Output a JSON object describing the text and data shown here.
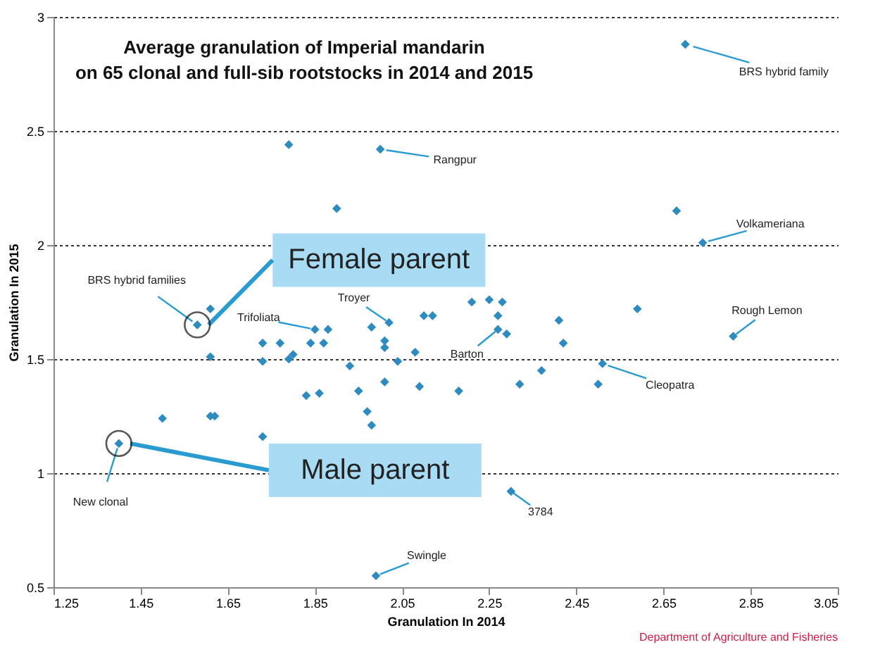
{
  "chart_data": {
    "type": "scatter",
    "title": "Average granulation of Imperial mandarin\non 65 clonal and full-sib rootstocks in 2014 and 2015",
    "xlabel": "Granulation In 2014",
    "ylabel": "Granulation In 2015",
    "x": [
      2.7,
      1.79,
      2.0,
      1.9,
      2.68,
      2.74,
      1.61,
      1.58,
      1.61,
      1.73,
      1.73,
      1.77,
      1.79,
      1.8,
      1.85,
      1.88,
      1.84,
      1.87,
      1.93,
      1.98,
      2.02,
      2.01,
      2.01,
      2.04,
      2.08,
      2.1,
      2.01,
      1.95,
      1.83,
      1.86,
      2.09,
      1.97,
      1.98,
      1.61,
      1.62,
      1.5,
      1.73,
      2.12,
      2.21,
      2.25,
      2.28,
      2.27,
      2.27,
      2.29,
      2.41,
      2.42,
      2.59,
      2.51,
      2.37,
      2.18,
      2.32,
      2.5,
      2.81,
      1.4,
      1.99,
      2.3
    ],
    "series": [
      {
        "color": "#2e8bc0",
        "values": [
          2.88,
          2.44,
          2.42,
          2.16,
          2.15,
          2.01,
          1.72,
          1.65,
          1.51,
          1.57,
          1.49,
          1.57,
          1.5,
          1.52,
          1.63,
          1.63,
          1.57,
          1.57,
          1.47,
          1.64,
          1.66,
          1.58,
          1.55,
          1.49,
          1.53,
          1.69,
          1.4,
          1.36,
          1.34,
          1.35,
          1.38,
          1.27,
          1.21,
          1.25,
          1.25,
          1.24,
          1.16,
          1.69,
          1.75,
          1.76,
          1.75,
          1.69,
          1.63,
          1.61,
          1.67,
          1.57,
          1.72,
          1.48,
          1.45,
          1.36,
          1.39,
          1.39,
          1.6,
          1.13,
          0.55,
          0.92
        ]
      }
    ],
    "xlim": [
      1.25,
      3.05
    ],
    "xticks": [
      1.25,
      1.45,
      1.65,
      1.85,
      2.05,
      2.25,
      2.45,
      2.65,
      2.85,
      3.05
    ],
    "ylim": [
      0.5,
      3
    ],
    "yticks": [
      0.5,
      1,
      1.5,
      2,
      2.5,
      3
    ],
    "grid": "y",
    "marker": "diamond",
    "annotations": [
      {
        "text": "BRS hybrid family",
        "x": 2.7,
        "y": 2.88
      },
      {
        "text": "Rangpur",
        "x": 2.0,
        "y": 2.42
      },
      {
        "text": "Volkameriana",
        "x": 2.74,
        "y": 2.01
      },
      {
        "text": "BRS hybrid families",
        "x": 1.58,
        "y": 1.65
      },
      {
        "text": "Troyer",
        "x": 2.02,
        "y": 1.66
      },
      {
        "text": "Trifoliata",
        "x": 1.85,
        "y": 1.63
      },
      {
        "text": "Rough Lemon",
        "x": 2.81,
        "y": 1.6
      },
      {
        "text": "Barton",
        "x": 2.27,
        "y": 1.63
      },
      {
        "text": "Cleopatra",
        "x": 2.51,
        "y": 1.48
      },
      {
        "text": "New clonal",
        "x": 1.4,
        "y": 1.13
      },
      {
        "text": "3784",
        "x": 2.3,
        "y": 0.92
      },
      {
        "text": "Swingle",
        "x": 1.99,
        "y": 0.55
      },
      {
        "text": "Female parent",
        "x": 1.58,
        "y": 1.65
      },
      {
        "text": "Male parent",
        "x": 1.4,
        "y": 1.13
      },
      "Department of Agriculture and Fisheries"
    ]
  }
}
